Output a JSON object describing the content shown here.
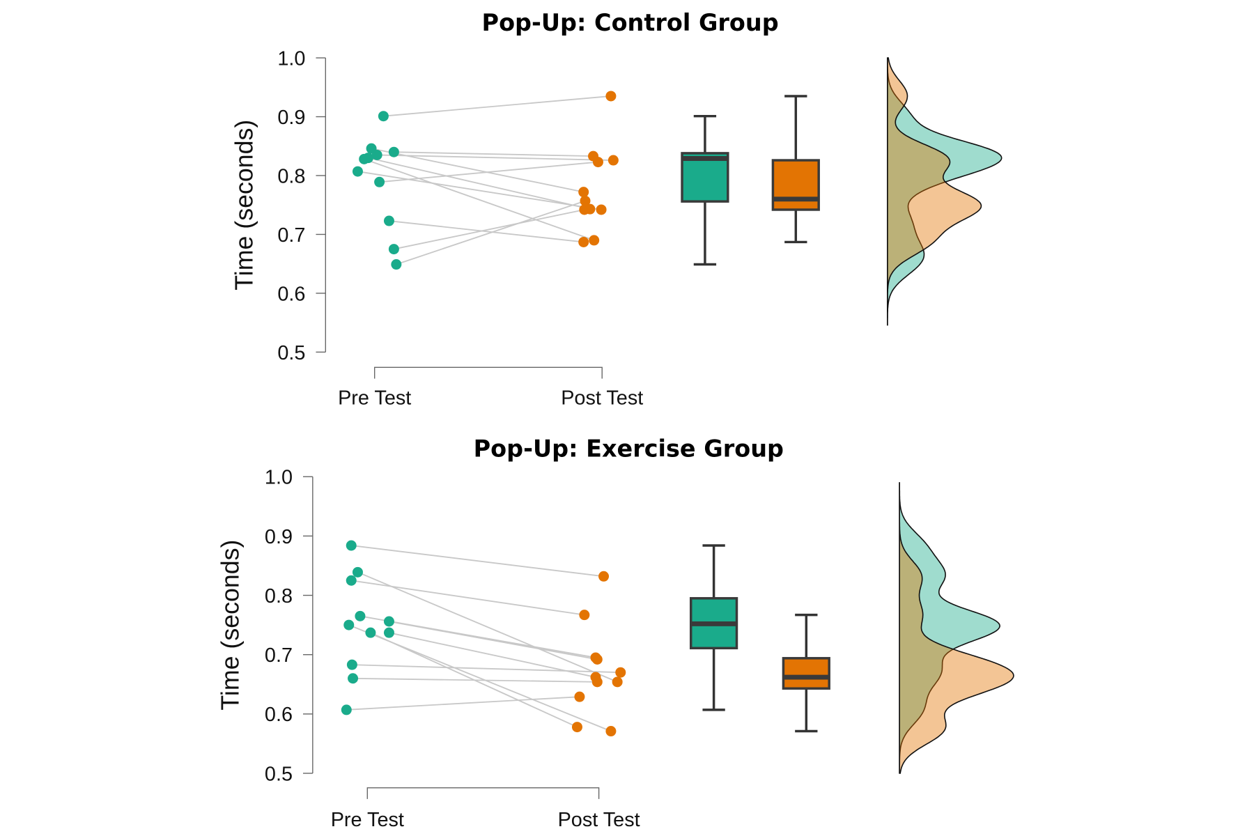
{
  "chart_data": [
    {
      "type": "raincloud",
      "title": "Pop-Up: Control Group",
      "ylabel": "Time (seconds)",
      "xlabel": "",
      "ylim": [
        0.5,
        1.0
      ],
      "yticks": [
        "0.5",
        "0.6",
        "0.7",
        "0.8",
        "0.9",
        "1.0"
      ],
      "categories": [
        "Pre Test",
        "Post Test"
      ],
      "colors": {
        "pre": "#1aab8b",
        "post": "#e37403"
      },
      "pairs": [
        [
          0.901,
          0.935
        ],
        [
          0.789,
          0.823
        ],
        [
          0.723,
          0.687
        ],
        [
          0.675,
          0.742
        ],
        [
          0.649,
          0.757
        ],
        [
          0.807,
          0.742
        ],
        [
          0.84,
          0.833
        ],
        [
          0.835,
          0.826
        ],
        [
          0.846,
          0.772
        ],
        [
          0.83,
          0.743
        ],
        [
          0.828,
          0.69
        ]
      ],
      "boxplots": [
        {
          "group": "Pre Test",
          "min": 0.649,
          "q1": 0.756,
          "median": 0.829,
          "q3": 0.838,
          "max": 0.901
        },
        {
          "group": "Post Test",
          "min": 0.687,
          "q1": 0.742,
          "median": 0.76,
          "q3": 0.826,
          "max": 0.935
        }
      ],
      "grid": false
    },
    {
      "type": "raincloud",
      "title": "Pop-Up: Exercise Group",
      "ylabel": "Time (seconds)",
      "xlabel": "",
      "ylim": [
        0.5,
        1.0
      ],
      "yticks": [
        "0.5",
        "0.6",
        "0.7",
        "0.8",
        "0.9",
        "1.0"
      ],
      "categories": [
        "Pre Test",
        "Post Test"
      ],
      "colors": {
        "pre": "#1aab8b",
        "post": "#e37403"
      },
      "pairs": [
        [
          0.884,
          0.832
        ],
        [
          0.839,
          0.654
        ],
        [
          0.825,
          0.767
        ],
        [
          0.765,
          0.695
        ],
        [
          0.75,
          0.571
        ],
        [
          0.737,
          0.578
        ],
        [
          0.756,
          0.692
        ],
        [
          0.737,
          0.662
        ],
        [
          0.683,
          0.67
        ],
        [
          0.66,
          0.654
        ],
        [
          0.607,
          0.629
        ]
      ],
      "boxplots": [
        {
          "group": "Pre Test",
          "min": 0.607,
          "q1": 0.711,
          "median": 0.752,
          "q3": 0.795,
          "max": 0.884
        },
        {
          "group": "Post Test",
          "min": 0.571,
          "q1": 0.643,
          "median": 0.662,
          "q3": 0.694,
          "max": 0.767
        }
      ],
      "grid": false
    }
  ]
}
